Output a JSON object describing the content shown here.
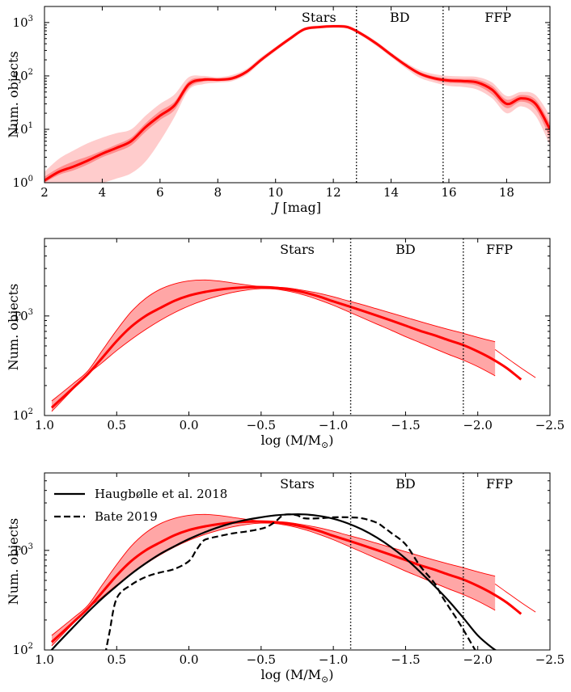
{
  "chart_data": [
    {
      "type": "line",
      "xlabel_italic": "J",
      "xlabel_rest": " [mag]",
      "ylabel": "Num. objects",
      "yscale": "log",
      "xlim": [
        2,
        19.5
      ],
      "ylim": [
        1,
        2000
      ],
      "xticks": [
        2,
        4,
        6,
        8,
        10,
        12,
        14,
        16,
        18
      ],
      "yticks": [
        {
          "value": 1,
          "label": "10",
          "exp": "0"
        },
        {
          "value": 10,
          "label": "10",
          "exp": "1"
        },
        {
          "value": 100,
          "label": "10",
          "exp": "2"
        },
        {
          "value": 1000,
          "label": "10",
          "exp": "3"
        }
      ],
      "boundaries": [
        12.8,
        15.8
      ],
      "region_labels": [
        {
          "text": "Stars",
          "x": 11.5
        },
        {
          "text": "BD",
          "x": 14.3
        },
        {
          "text": "FFP",
          "x": 17.7
        }
      ],
      "series": [
        {
          "name": "median",
          "color": "#ff0000",
          "x": [
            2,
            2.5,
            3,
            3.5,
            4,
            4.5,
            5,
            5.5,
            6,
            6.5,
            7,
            7.5,
            8,
            8.5,
            9,
            9.5,
            10,
            10.5,
            11,
            11.5,
            12,
            12.5,
            13,
            13.5,
            14,
            14.5,
            15,
            15.5,
            16,
            16.5,
            17,
            17.5,
            18,
            18.5,
            19,
            19.5
          ],
          "y": [
            1.1,
            1.6,
            2.0,
            2.6,
            3.5,
            4.5,
            6.0,
            11,
            18,
            28,
            70,
            85,
            85,
            90,
            120,
            200,
            320,
            500,
            750,
            820,
            850,
            820,
            600,
            400,
            250,
            160,
            110,
            90,
            82,
            80,
            75,
            55,
            30,
            38,
            30,
            10
          ]
        }
      ],
      "bands": [
        {
          "name": "inner",
          "color": "#ff0000",
          "opacity": 0.3,
          "lower": [
            1.0,
            1.4,
            1.7,
            2.2,
            3.0,
            3.8,
            5.0,
            9,
            15,
            23,
            60,
            78,
            80,
            84,
            112,
            190,
            305,
            480,
            720,
            790,
            820,
            790,
            575,
            380,
            238,
            150,
            102,
            83,
            74,
            72,
            65,
            45,
            25,
            33,
            24,
            7
          ],
          "upper": [
            1.3,
            1.9,
            2.5,
            3.1,
            4.0,
            5.2,
            7.0,
            13,
            22,
            33,
            80,
            92,
            90,
            97,
            128,
            212,
            335,
            520,
            780,
            850,
            880,
            850,
            625,
            420,
            262,
            170,
            118,
            98,
            90,
            88,
            85,
            65,
            36,
            44,
            36,
            13
          ]
        },
        {
          "name": "outer",
          "color": "#ff0000",
          "opacity": 0.2,
          "lower": [
            1,
            1,
            1,
            1,
            1,
            1.2,
            1.5,
            2.5,
            6,
            17,
            55,
            70,
            75,
            80,
            105,
            180,
            290,
            460,
            700,
            770,
            800,
            760,
            550,
            360,
            225,
            140,
            92,
            75,
            65,
            62,
            55,
            38,
            20,
            27,
            18,
            5
          ],
          "upper": [
            1.6,
            2.8,
            4.0,
            5.5,
            7.0,
            8.5,
            10,
            18,
            30,
            45,
            95,
            100,
            95,
            104,
            136,
            225,
            350,
            545,
            810,
            880,
            910,
            880,
            650,
            440,
            275,
            180,
            128,
            108,
            100,
            98,
            95,
            75,
            42,
            50,
            44,
            18
          ]
        }
      ]
    },
    {
      "type": "line",
      "xlabel": "log (M/M",
      "xlabel_sub": "⊙",
      "xlabel_end": ")",
      "ylabel": "Num. objects",
      "yscale": "log",
      "xlim": [
        1.0,
        -2.5
      ],
      "ylim": [
        100,
        6000
      ],
      "xticks": [
        1.0,
        0.5,
        0.0,
        -0.5,
        -1.0,
        -1.5,
        -2.0,
        -2.5
      ],
      "xticklabels": [
        "1.0",
        "0.5",
        "0.0",
        "−0.5",
        "−1.0",
        "−1.5",
        "−2.0",
        "−2.5"
      ],
      "yticks": [
        {
          "value": 100,
          "label": "10",
          "exp": "2"
        },
        {
          "value": 1000,
          "label": "10",
          "exp": "3"
        }
      ],
      "boundaries": [
        -1.12,
        -1.9
      ],
      "region_labels": [
        {
          "text": "Stars",
          "x": -0.75
        },
        {
          "text": "BD",
          "x": -1.5
        },
        {
          "text": "FFP",
          "x": -2.15
        }
      ],
      "series": [
        {
          "name": "median",
          "color": "#ff0000",
          "x": [
            0.95,
            0.8,
            0.7,
            0.6,
            0.5,
            0.4,
            0.3,
            0.2,
            0.1,
            0.0,
            -0.1,
            -0.2,
            -0.3,
            -0.4,
            -0.5,
            -0.6,
            -0.7,
            -0.8,
            -0.9,
            -1.0,
            -1.1,
            -1.2,
            -1.3,
            -1.4,
            -1.5,
            -1.6,
            -1.7,
            -1.8,
            -1.9,
            -2.0,
            -2.1,
            -2.2,
            -2.3
          ],
          "y": [
            120,
            190,
            260,
            380,
            560,
            780,
            1000,
            1200,
            1420,
            1600,
            1730,
            1830,
            1900,
            1940,
            1950,
            1920,
            1840,
            1720,
            1570,
            1400,
            1260,
            1130,
            1010,
            900,
            800,
            710,
            640,
            570,
            510,
            440,
            370,
            300,
            230
          ]
        },
        {
          "name": "band_extension",
          "color": "#ff0000",
          "width": 0.9,
          "x": [
            -2.12,
            -2.2,
            -2.3,
            -2.4
          ],
          "y": [
            460,
            380,
            300,
            240
          ]
        }
      ],
      "bands": [
        {
          "name": "range",
          "color": "#ff0000",
          "opacity": 0.35,
          "x": [
            0.95,
            0.8,
            0.7,
            0.6,
            0.5,
            0.4,
            0.3,
            0.2,
            0.1,
            0.0,
            -0.1,
            -0.2,
            -0.3,
            -0.4,
            -0.5,
            -0.6,
            -0.7,
            -0.8,
            -0.9,
            -1.0,
            -1.1,
            -1.2,
            -1.3,
            -1.4,
            -1.5,
            -1.6,
            -1.7,
            -1.8,
            -1.9,
            -2.0,
            -2.1,
            -2.12
          ],
          "lower": [
            110,
            185,
            260,
            340,
            450,
            580,
            730,
            900,
            1080,
            1260,
            1430,
            1580,
            1720,
            1820,
            1880,
            1860,
            1760,
            1620,
            1450,
            1280,
            1110,
            960,
            830,
            720,
            620,
            540,
            470,
            410,
            360,
            310,
            260,
            250
          ],
          "upper": [
            140,
            210,
            280,
            450,
            720,
            1100,
            1500,
            1850,
            2100,
            2250,
            2300,
            2250,
            2150,
            2050,
            1970,
            1950,
            1900,
            1800,
            1690,
            1560,
            1420,
            1300,
            1180,
            1070,
            970,
            880,
            800,
            730,
            670,
            610,
            560,
            550
          ]
        }
      ]
    },
    {
      "type": "line",
      "xlabel": "log (M/M",
      "xlabel_sub": "⊙",
      "xlabel_end": ")",
      "ylabel": "Num. objects",
      "yscale": "log",
      "xlim": [
        1.0,
        -2.5
      ],
      "ylim": [
        100,
        6000
      ],
      "xticks": [
        1.0,
        0.5,
        0.0,
        -0.5,
        -1.0,
        -1.5,
        -2.0,
        -2.5
      ],
      "xticklabels": [
        "1.0",
        "0.5",
        "0.0",
        "−0.5",
        "−1.0",
        "−1.5",
        "−2.0",
        "−2.5"
      ],
      "yticks": [
        {
          "value": 100,
          "label": "10",
          "exp": "2"
        },
        {
          "value": 1000,
          "label": "10",
          "exp": "3"
        }
      ],
      "boundaries": [
        -1.12,
        -1.9
      ],
      "region_labels": [
        {
          "text": "Stars",
          "x": -0.75
        },
        {
          "text": "BD",
          "x": -1.5
        },
        {
          "text": "FFP",
          "x": -2.15
        }
      ],
      "legend": [
        {
          "label": "Haugbølle et al. 2018",
          "style": "solid",
          "color": "#000000"
        },
        {
          "label": "Bate 2019",
          "style": "dashed",
          "color": "#000000"
        }
      ],
      "series": [
        {
          "name": "median",
          "color": "#ff0000",
          "x": [
            0.95,
            0.8,
            0.7,
            0.6,
            0.5,
            0.4,
            0.3,
            0.2,
            0.1,
            0.0,
            -0.1,
            -0.2,
            -0.3,
            -0.4,
            -0.5,
            -0.6,
            -0.7,
            -0.8,
            -0.9,
            -1.0,
            -1.1,
            -1.2,
            -1.3,
            -1.4,
            -1.5,
            -1.6,
            -1.7,
            -1.8,
            -1.9,
            -2.0,
            -2.1,
            -2.2,
            -2.3
          ],
          "y": [
            120,
            190,
            260,
            380,
            560,
            780,
            1000,
            1200,
            1420,
            1600,
            1730,
            1830,
            1900,
            1940,
            1950,
            1920,
            1840,
            1720,
            1570,
            1400,
            1260,
            1130,
            1010,
            900,
            800,
            710,
            640,
            570,
            510,
            440,
            370,
            300,
            230
          ]
        },
        {
          "name": "band_extension",
          "color": "#ff0000",
          "width": 0.9,
          "x": [
            -2.12,
            -2.2,
            -2.3,
            -2.4
          ],
          "y": [
            460,
            380,
            300,
            240
          ]
        },
        {
          "name": "Haugbølle et al. 2018",
          "color": "#000000",
          "style": "solid",
          "x": [
            0.98,
            0.9,
            0.8,
            0.7,
            0.6,
            0.5,
            0.4,
            0.3,
            0.2,
            0.1,
            0.0,
            -0.1,
            -0.2,
            -0.3,
            -0.4,
            -0.5,
            -0.6,
            -0.7,
            -0.8,
            -0.9,
            -1.0,
            -1.1,
            -1.2,
            -1.3,
            -1.4,
            -1.5,
            -1.6,
            -1.7,
            -1.8,
            -1.9,
            -2.0,
            -2.1,
            -2.15
          ],
          "y": [
            90,
            120,
            170,
            240,
            330,
            440,
            580,
            740,
            920,
            1100,
            1300,
            1500,
            1700,
            1880,
            2030,
            2150,
            2250,
            2300,
            2300,
            2220,
            2080,
            1870,
            1620,
            1350,
            1080,
            830,
            610,
            440,
            310,
            210,
            140,
            105,
            95
          ]
        },
        {
          "name": "Bate 2019",
          "color": "#000000",
          "style": "dashed",
          "x": [
            0.58,
            0.55,
            0.5,
            0.4,
            0.3,
            0.2,
            0.1,
            0.0,
            -0.05,
            -0.1,
            -0.15,
            -0.2,
            -0.3,
            -0.4,
            -0.5,
            -0.55,
            -0.6,
            -0.65,
            -0.7,
            -0.75,
            -0.8,
            -0.9,
            -1.0,
            -1.1,
            -1.2,
            -1.3,
            -1.35,
            -1.4,
            -1.5,
            -1.6,
            -1.7,
            -1.75,
            -1.8,
            -1.85,
            -1.9,
            -1.95,
            -2.0
          ],
          "y": [
            90,
            150,
            330,
            450,
            540,
            600,
            650,
            780,
            1000,
            1250,
            1330,
            1380,
            1480,
            1550,
            1650,
            1750,
            1950,
            2250,
            2300,
            2250,
            2100,
            2100,
            2150,
            2150,
            2100,
            1900,
            1700,
            1500,
            1150,
            700,
            470,
            350,
            270,
            210,
            160,
            120,
            90
          ]
        }
      ],
      "bands": [
        {
          "name": "range",
          "color": "#ff0000",
          "opacity": 0.35,
          "x": [
            0.95,
            0.8,
            0.7,
            0.6,
            0.5,
            0.4,
            0.3,
            0.2,
            0.1,
            0.0,
            -0.1,
            -0.2,
            -0.3,
            -0.4,
            -0.5,
            -0.6,
            -0.7,
            -0.8,
            -0.9,
            -1.0,
            -1.1,
            -1.2,
            -1.3,
            -1.4,
            -1.5,
            -1.6,
            -1.7,
            -1.8,
            -1.9,
            -2.0,
            -2.1,
            -2.12
          ],
          "lower": [
            110,
            185,
            260,
            340,
            450,
            580,
            730,
            900,
            1080,
            1260,
            1430,
            1580,
            1720,
            1820,
            1880,
            1860,
            1760,
            1620,
            1450,
            1280,
            1110,
            960,
            830,
            720,
            620,
            540,
            470,
            410,
            360,
            310,
            260,
            250
          ],
          "upper": [
            140,
            210,
            280,
            450,
            720,
            1100,
            1500,
            1850,
            2100,
            2250,
            2300,
            2250,
            2150,
            2050,
            1970,
            1950,
            1900,
            1800,
            1690,
            1560,
            1420,
            1300,
            1180,
            1070,
            970,
            880,
            800,
            730,
            670,
            610,
            560,
            550
          ]
        }
      ]
    }
  ]
}
